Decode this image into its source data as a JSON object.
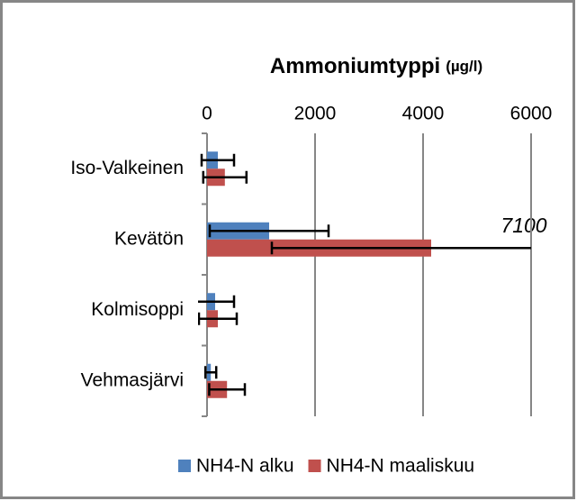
{
  "chart_data": {
    "type": "bar",
    "orientation": "horizontal",
    "title": "Ammoniumtyppi",
    "title_unit": "(µg/l)",
    "categories": [
      "Iso-Valkeinen",
      "Kevätön",
      "Kolmisoppi",
      "Vehmasjärvi"
    ],
    "series": [
      {
        "name": "NH4-N alku",
        "color": "#4f81bd",
        "values": [
          200,
          1150,
          150,
          70
        ],
        "errors": [
          300,
          1100,
          350,
          100
        ]
      },
      {
        "name": "NH4-N maaliskuu",
        "color": "#c0504d",
        "values": [
          330,
          4150,
          200,
          370
        ],
        "errors": [
          400,
          2950,
          350,
          330
        ]
      }
    ],
    "xlim": [
      0,
      6000
    ],
    "xticks": [
      0,
      2000,
      4000,
      6000
    ],
    "grid": true,
    "annotation": "7100"
  }
}
